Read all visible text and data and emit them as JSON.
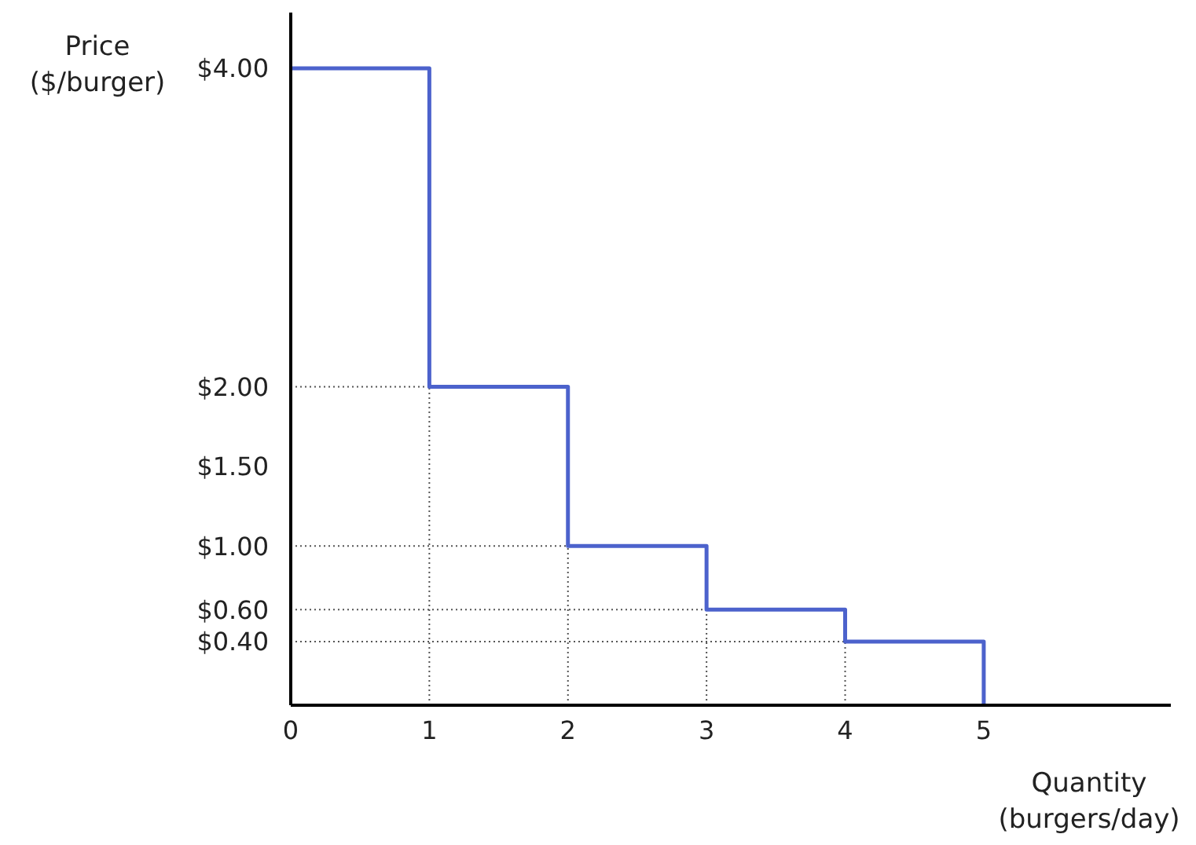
{
  "chart_data": {
    "type": "step",
    "xlabel": "Quantity\n(burgers/day)",
    "ylabel": "Price\n($/burger)",
    "x": [
      0,
      1,
      2,
      3,
      4,
      5
    ],
    "series": [
      {
        "color": "#4c62cc",
        "values": [
          4,
          2,
          1,
          0.6,
          0.4,
          0
        ]
      }
    ],
    "xlim": [
      0,
      6.35
    ],
    "xticks": [
      0,
      1,
      2,
      3,
      4,
      5
    ],
    "ylim": [
      0,
      4.35
    ],
    "yticks": [
      {
        "value": 0.4,
        "label": "$0.40"
      },
      {
        "value": 0.6,
        "label": "$0.60"
      },
      {
        "value": 1,
        "label": "$1.00"
      },
      {
        "value": 1.5,
        "label": "$1.50"
      },
      {
        "value": 2,
        "label": "$2.00"
      },
      {
        "value": 4,
        "label": "$4.00"
      }
    ],
    "ref_lines": [
      {
        "axis": "y",
        "value": 2,
        "color": "#555555",
        "line_style": "dotted"
      },
      {
        "axis": "y",
        "value": 1,
        "color": "#555555",
        "line_style": "dotted"
      },
      {
        "axis": "y",
        "value": 0.6,
        "color": "#555555",
        "line_style": "dotted"
      },
      {
        "axis": "y",
        "value": 0.4,
        "color": "#555555",
        "line_style": "dotted"
      },
      {
        "axis": "x",
        "value": 1,
        "color": "#555555",
        "line_style": "dotted"
      },
      {
        "axis": "x",
        "value": 2,
        "color": "#555555",
        "line_style": "dotted"
      },
      {
        "axis": "x",
        "value": 3,
        "color": "#555555",
        "line_style": "dotted"
      },
      {
        "axis": "x",
        "value": 4,
        "color": "#555555",
        "line_style": "dotted"
      }
    ]
  }
}
